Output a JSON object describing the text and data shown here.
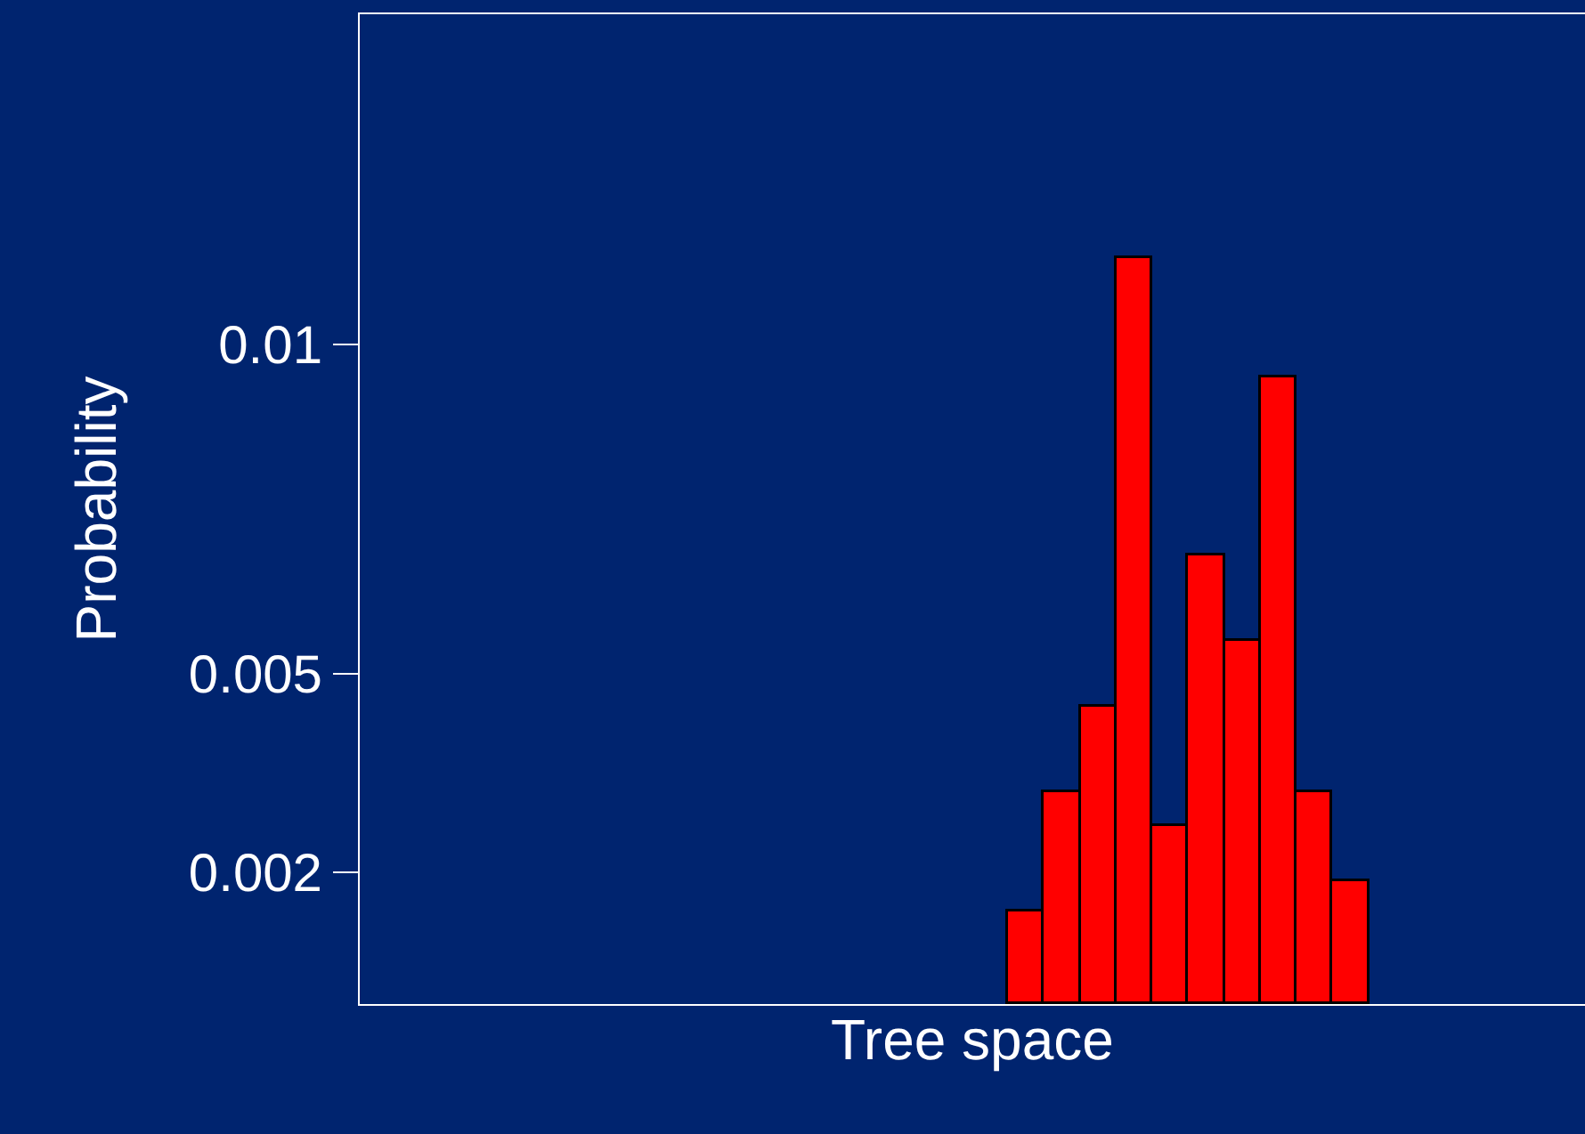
{
  "chart_data": {
    "type": "bar",
    "xlabel": "Tree space",
    "ylabel": "Probability",
    "categories": [
      null,
      null,
      null,
      null,
      null,
      null,
      null,
      null,
      null,
      null,
      null,
      null,
      null,
      null,
      null,
      null,
      null,
      null,
      null,
      null,
      null,
      null,
      null,
      null,
      null,
      null,
      null,
      null,
      null,
      null,
      null,
      null,
      null,
      null
    ],
    "values": [
      null,
      null,
      null,
      null,
      null,
      null,
      null,
      null,
      null,
      null,
      null,
      null,
      null,
      null,
      null,
      null,
      null,
      null,
      0.0014,
      0.0032,
      0.0045,
      0.0113,
      0.0027,
      0.0068,
      0.0055,
      0.0095,
      0.0032,
      0.00185,
      null,
      null,
      null,
      null,
      null,
      null
    ],
    "color": "#ff0000",
    "ylim": [
      0,
      0.015
    ],
    "yticks": [
      {
        "value": 0.002,
        "label": "0.002"
      },
      {
        "value": 0.005,
        "label": "0.005"
      },
      {
        "value": 0.01,
        "label": "0.01"
      }
    ],
    "grid": false,
    "legend": false,
    "tick_labels": "y"
  }
}
